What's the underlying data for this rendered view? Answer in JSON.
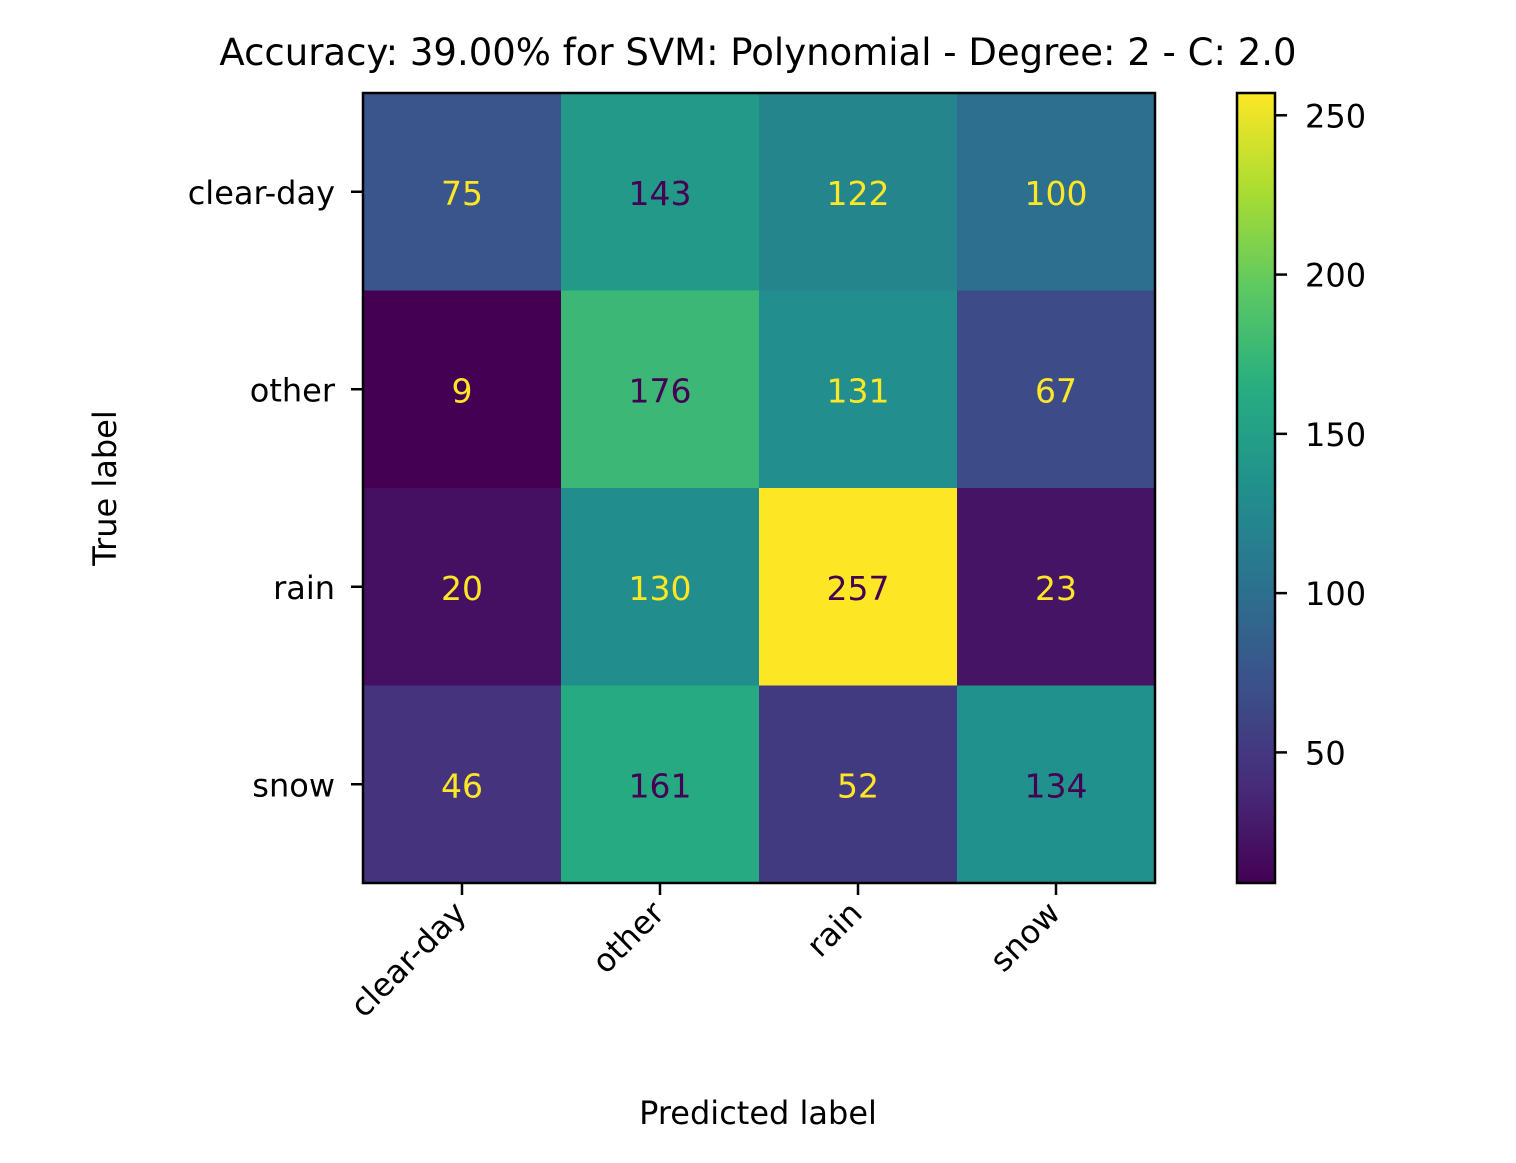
{
  "chart_data": {
    "type": "heatmap",
    "title": "Accuracy: 39.00% for SVM: Polynomial - Degree: 2 - C: 2.0",
    "xlabel": "Predicted label",
    "ylabel": "True label",
    "x_categories": [
      "clear-day",
      "other",
      "rain",
      "snow"
    ],
    "y_categories": [
      "clear-day",
      "other",
      "rain",
      "snow"
    ],
    "values": [
      [
        75,
        143,
        122,
        100
      ],
      [
        9,
        176,
        131,
        67
      ],
      [
        20,
        130,
        257,
        23
      ],
      [
        46,
        161,
        52,
        134
      ]
    ],
    "colormap": "viridis",
    "value_range": [
      9,
      257
    ],
    "colorbar_ticks": [
      50,
      100,
      150,
      200,
      250
    ],
    "label_colors": {
      "on_dark": "#fde725",
      "on_light": "#440154"
    }
  }
}
